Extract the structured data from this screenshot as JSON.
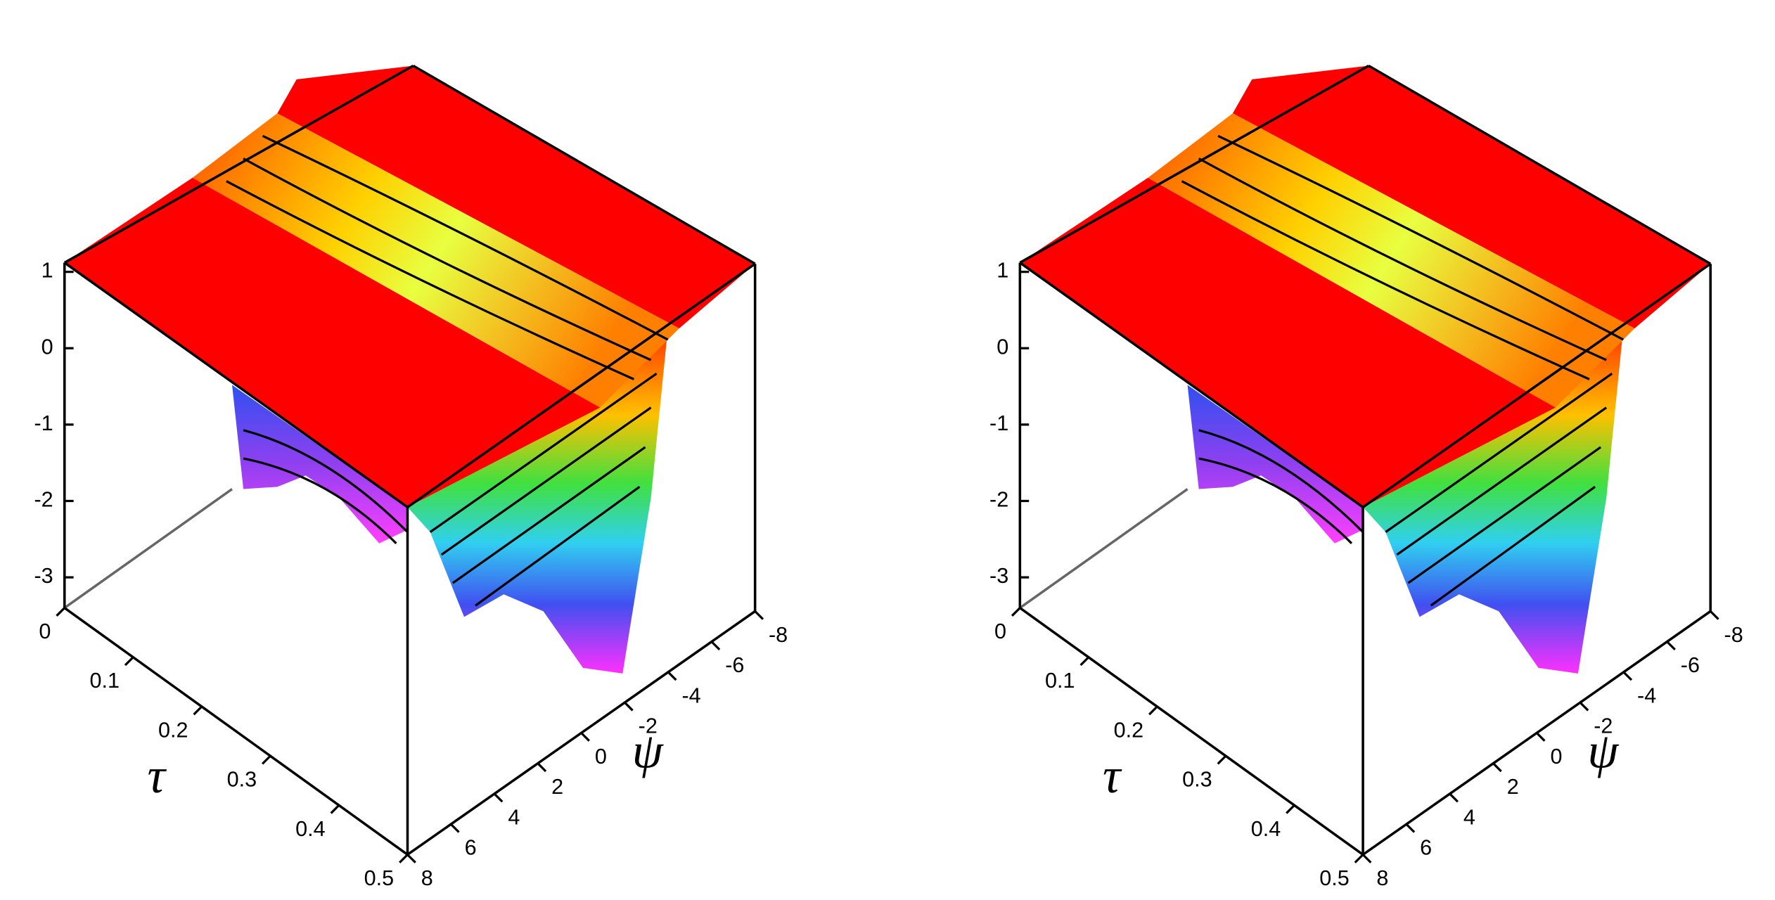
{
  "chart_data": [
    {
      "type": "surface",
      "xlabel": "τ",
      "ylabel": "ψ",
      "xlim": [
        0,
        0.5
      ],
      "xticks": [
        0,
        0.1,
        0.2,
        0.3,
        0.4,
        0.5
      ],
      "ylim": [
        8,
        -8
      ],
      "yticks": [
        8,
        6,
        4,
        2,
        0,
        -2,
        -4,
        -6,
        -8
      ],
      "zlim": [
        -3.4,
        1.12
      ],
      "zticks": [
        1,
        0,
        -1,
        -2,
        -3
      ]
    },
    {
      "type": "surface",
      "xlabel": "τ",
      "ylabel": "ψ",
      "xlim": [
        0,
        0.5
      ],
      "xticks": [
        0,
        0.1,
        0.2,
        0.3,
        0.4,
        0.5
      ],
      "ylim": [
        8,
        -8
      ],
      "yticks": [
        8,
        6,
        4,
        2,
        0,
        -2,
        -4,
        -6,
        -8
      ],
      "zlim": [
        -3.4,
        1.12
      ],
      "zticks": [
        1,
        0,
        -1,
        -2,
        -3
      ]
    }
  ]
}
